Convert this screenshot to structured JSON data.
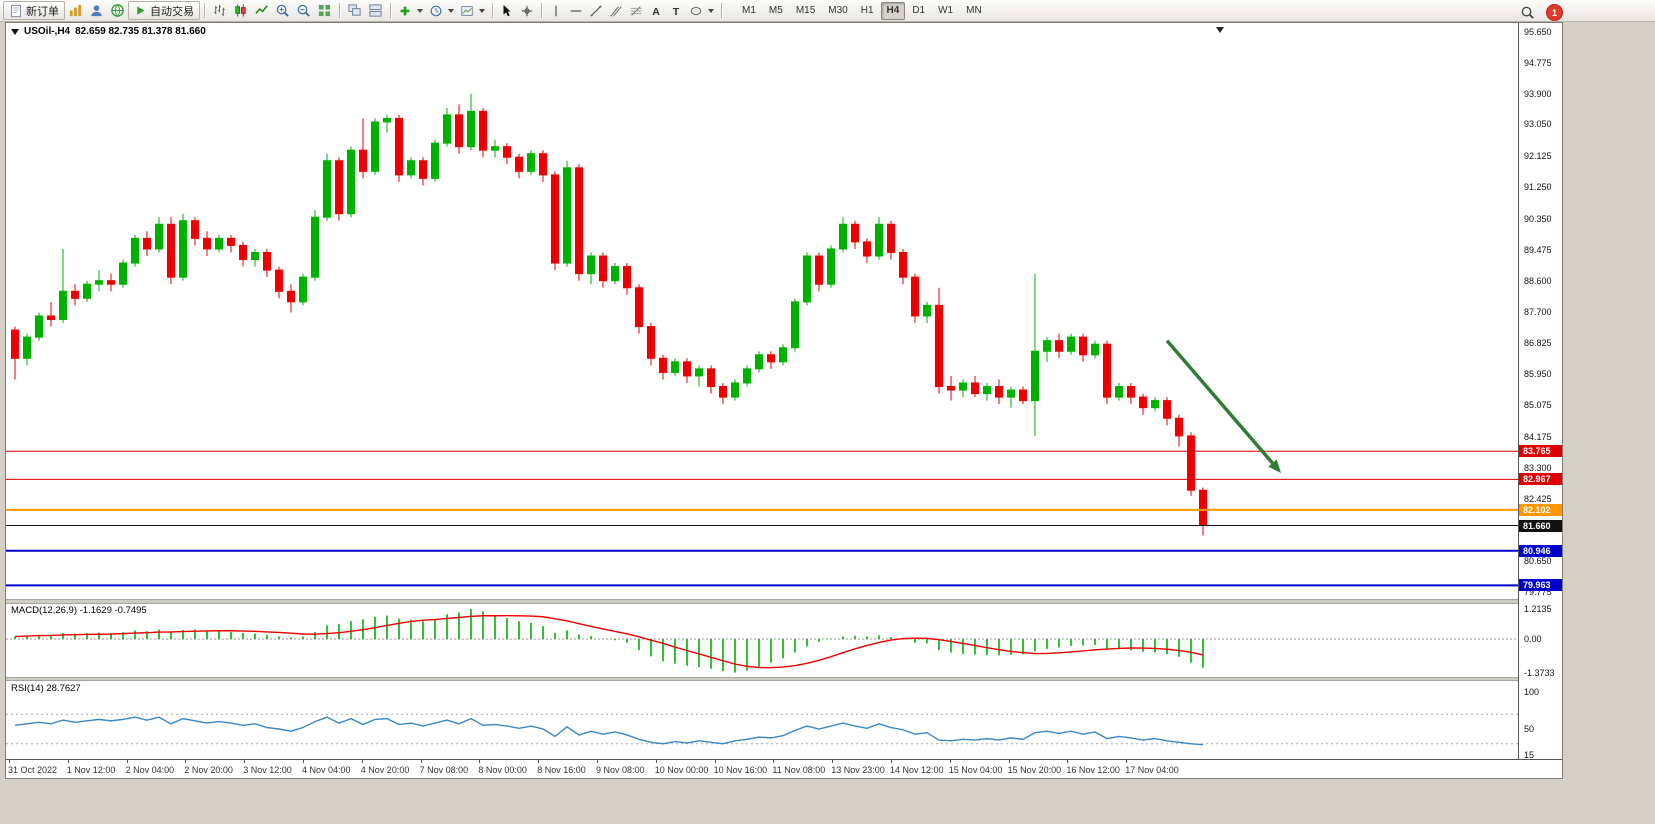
{
  "chart_window": {
    "symbol_period": "USOil-,H4",
    "ohlc": "82.659 82.735 81.378 81.660"
  },
  "toolbar": {
    "new_order_label": "新订单",
    "autotrading_label": "自动交易",
    "text_tool_a": "A",
    "text_tool_t": "T",
    "notification_count": "1",
    "timeframes": [
      {
        "label": "M1",
        "active": false
      },
      {
        "label": "M5",
        "active": false
      },
      {
        "label": "M15",
        "active": false
      },
      {
        "label": "M30",
        "active": false
      },
      {
        "label": "H1",
        "active": false
      },
      {
        "label": "H4",
        "active": true
      },
      {
        "label": "D1",
        "active": false
      },
      {
        "label": "W1",
        "active": false
      },
      {
        "label": "MN",
        "active": false
      }
    ]
  },
  "chart_data": {
    "type": "candlestick",
    "symbol": "USOil-",
    "timeframe": "H4",
    "ohlc_current": {
      "open": 82.659,
      "high": 82.735,
      "low": 81.378,
      "close": 81.66
    },
    "colors": {
      "bull": "#00b200",
      "bear": "#ee0000"
    },
    "price_axis": {
      "min": 79.775,
      "max": 95.65,
      "labels": [
        "95.650",
        "94.775",
        "93.900",
        "93.050",
        "92.125",
        "91.250",
        "90.350",
        "89.475",
        "88.600",
        "87.700",
        "86.825",
        "85.950",
        "85.075",
        "84.175",
        "83.300",
        "82.425",
        "81.550",
        "80.650",
        "79.775"
      ]
    },
    "candles": [
      [
        87.2,
        87.3,
        85.8,
        86.4
      ],
      [
        86.4,
        87.1,
        86.2,
        87.0
      ],
      [
        87.0,
        87.7,
        86.9,
        87.6
      ],
      [
        87.6,
        88.0,
        87.3,
        87.5
      ],
      [
        87.5,
        89.5,
        87.4,
        88.3
      ],
      [
        88.3,
        88.5,
        87.9,
        88.1
      ],
      [
        88.1,
        88.6,
        88.0,
        88.5
      ],
      [
        88.5,
        88.9,
        88.3,
        88.6
      ],
      [
        88.6,
        88.8,
        88.3,
        88.5
      ],
      [
        88.5,
        89.2,
        88.4,
        89.1
      ],
      [
        89.1,
        89.9,
        89.0,
        89.8
      ],
      [
        89.8,
        90.0,
        89.3,
        89.5
      ],
      [
        89.5,
        90.4,
        89.4,
        90.2
      ],
      [
        90.2,
        90.4,
        88.5,
        88.7
      ],
      [
        88.7,
        90.5,
        88.6,
        90.3
      ],
      [
        90.3,
        90.4,
        89.6,
        89.8
      ],
      [
        89.8,
        90.0,
        89.3,
        89.5
      ],
      [
        89.5,
        89.9,
        89.4,
        89.8
      ],
      [
        89.8,
        89.9,
        89.4,
        89.6
      ],
      [
        89.6,
        89.7,
        89.0,
        89.2
      ],
      [
        89.2,
        89.5,
        89.0,
        89.4
      ],
      [
        89.4,
        89.5,
        88.7,
        88.9
      ],
      [
        88.9,
        89.0,
        88.1,
        88.3
      ],
      [
        88.3,
        88.5,
        87.7,
        88.0
      ],
      [
        88.0,
        88.8,
        87.9,
        88.7
      ],
      [
        88.7,
        90.6,
        88.6,
        90.4
      ],
      [
        90.4,
        92.2,
        90.3,
        92.0
      ],
      [
        92.0,
        92.1,
        90.3,
        90.5
      ],
      [
        90.5,
        92.4,
        90.4,
        92.3
      ],
      [
        92.3,
        93.2,
        91.5,
        91.7
      ],
      [
        91.7,
        93.2,
        91.6,
        93.1
      ],
      [
        93.1,
        93.3,
        92.8,
        93.2
      ],
      [
        93.2,
        93.3,
        91.4,
        91.6
      ],
      [
        91.6,
        92.1,
        91.5,
        92.0
      ],
      [
        92.0,
        92.1,
        91.3,
        91.5
      ],
      [
        91.5,
        92.6,
        91.4,
        92.5
      ],
      [
        92.5,
        93.5,
        92.4,
        93.3
      ],
      [
        93.3,
        93.6,
        92.2,
        92.4
      ],
      [
        92.4,
        93.9,
        92.3,
        93.4
      ],
      [
        93.4,
        93.5,
        92.1,
        92.3
      ],
      [
        92.3,
        92.6,
        92.1,
        92.4
      ],
      [
        92.4,
        92.5,
        91.9,
        92.1
      ],
      [
        92.1,
        92.2,
        91.5,
        91.7
      ],
      [
        91.7,
        92.3,
        91.6,
        92.2
      ],
      [
        92.2,
        92.3,
        91.4,
        91.6
      ],
      [
        91.6,
        91.7,
        88.9,
        89.1
      ],
      [
        89.1,
        92.0,
        89.0,
        91.8
      ],
      [
        91.8,
        91.9,
        88.6,
        88.8
      ],
      [
        88.8,
        89.4,
        88.5,
        89.3
      ],
      [
        89.3,
        89.4,
        88.4,
        88.6
      ],
      [
        88.6,
        89.1,
        88.5,
        89.0
      ],
      [
        89.0,
        89.1,
        88.2,
        88.4
      ],
      [
        88.4,
        88.5,
        87.1,
        87.3
      ],
      [
        87.3,
        87.4,
        86.2,
        86.4
      ],
      [
        86.4,
        86.5,
        85.8,
        86.0
      ],
      [
        86.0,
        86.4,
        85.9,
        86.3
      ],
      [
        86.3,
        86.4,
        85.7,
        85.9
      ],
      [
        85.9,
        86.2,
        85.6,
        86.1
      ],
      [
        86.1,
        86.2,
        85.4,
        85.6
      ],
      [
        85.6,
        85.7,
        85.1,
        85.3
      ],
      [
        85.3,
        85.8,
        85.2,
        85.7
      ],
      [
        85.7,
        86.2,
        85.6,
        86.1
      ],
      [
        86.1,
        86.6,
        86.0,
        86.5
      ],
      [
        86.5,
        86.6,
        86.1,
        86.3
      ],
      [
        86.3,
        86.8,
        86.2,
        86.7
      ],
      [
        86.7,
        88.1,
        86.6,
        88.0
      ],
      [
        88.0,
        89.4,
        87.9,
        89.3
      ],
      [
        89.3,
        89.4,
        88.3,
        88.5
      ],
      [
        88.5,
        89.6,
        88.4,
        89.5
      ],
      [
        89.5,
        90.4,
        89.4,
        90.2
      ],
      [
        90.2,
        90.3,
        89.5,
        89.7
      ],
      [
        89.7,
        89.8,
        89.1,
        89.3
      ],
      [
        89.3,
        90.4,
        89.2,
        90.2
      ],
      [
        90.2,
        90.3,
        89.2,
        89.4
      ],
      [
        89.4,
        89.5,
        88.5,
        88.7
      ],
      [
        88.7,
        88.8,
        87.4,
        87.6
      ],
      [
        87.6,
        88.0,
        87.4,
        87.9
      ],
      [
        87.9,
        88.4,
        85.4,
        85.6
      ],
      [
        85.6,
        85.9,
        85.2,
        85.5
      ],
      [
        85.5,
        85.8,
        85.3,
        85.7
      ],
      [
        85.7,
        85.9,
        85.3,
        85.4
      ],
      [
        85.4,
        85.7,
        85.2,
        85.6
      ],
      [
        85.6,
        85.8,
        85.1,
        85.3
      ],
      [
        85.3,
        85.6,
        85.0,
        85.5
      ],
      [
        85.5,
        85.6,
        85.1,
        85.2
      ],
      [
        85.2,
        88.8,
        84.2,
        86.6
      ],
      [
        86.6,
        87.0,
        86.3,
        86.9
      ],
      [
        86.9,
        87.1,
        86.4,
        86.6
      ],
      [
        86.6,
        87.1,
        86.5,
        87.0
      ],
      [
        87.0,
        87.1,
        86.3,
        86.5
      ],
      [
        86.5,
        86.9,
        86.4,
        86.8
      ],
      [
        86.8,
        86.9,
        85.1,
        85.3
      ],
      [
        85.3,
        85.7,
        85.2,
        85.6
      ],
      [
        85.6,
        85.7,
        85.1,
        85.3
      ],
      [
        85.3,
        85.4,
        84.8,
        85.0
      ],
      [
        85.0,
        85.3,
        84.9,
        85.2
      ],
      [
        85.2,
        85.3,
        84.5,
        84.7
      ],
      [
        84.7,
        84.8,
        83.9,
        84.2
      ],
      [
        84.2,
        84.3,
        82.5,
        82.66
      ],
      [
        82.659,
        82.735,
        81.378,
        81.66
      ]
    ],
    "levels": [
      {
        "price": 83.765,
        "label": "83.765",
        "color": "#dd0000",
        "line_width": 1,
        "role": "resistance"
      },
      {
        "price": 82.967,
        "label": "82.967",
        "color": "#dd0000",
        "line_width": 1,
        "role": "resistance"
      },
      {
        "price": 82.102,
        "label": "82.102",
        "color": "#ff9800",
        "line_width": 2,
        "role": "support"
      },
      {
        "price": 81.66,
        "label": "81.660",
        "color": "#111111",
        "line_width": 1,
        "role": "current-price"
      },
      {
        "price": 80.946,
        "label": "80.946",
        "color": "#0000cc",
        "line_width": 2,
        "role": "support"
      },
      {
        "price": 79.963,
        "label": "79.963",
        "color": "#0000cc",
        "line_width": 2,
        "role": "support"
      }
    ],
    "arrow": {
      "from_bar": 96,
      "from_price": 86.9,
      "to_bar": 105.5,
      "to_price": 83.15,
      "color": "#2e7d32"
    },
    "time_labels": [
      "31 Oct 2022",
      "1 Nov 12:00",
      "2 Nov 04:00",
      "2 Nov 20:00",
      "3 Nov 12:00",
      "4 Nov 04:00",
      "4 Nov 20:00",
      "7 Nov 08:00",
      "8 Nov 00:00",
      "8 Nov 16:00",
      "9 Nov 08:00",
      "10 Nov 00:00",
      "10 Nov 16:00",
      "11 Nov 08:00",
      "13 Nov 23:00",
      "14 Nov 12:00",
      "15 Nov 04:00",
      "15 Nov 20:00",
      "16 Nov 12:00",
      "17 Nov 04:00"
    ],
    "macd": {
      "label": "MACD(12,26,9) -1.1629 -0.7495",
      "value": -1.1629,
      "signal_value": -0.7495,
      "axis_max": 1.2135,
      "axis": [
        {
          "v": 1.2135,
          "t": "1.2135"
        },
        {
          "v": 0,
          "t": "0.00"
        },
        {
          "v": -1.3733,
          "t": "-1.3733"
        }
      ],
      "colors": {
        "histogram": "#00b200",
        "signal": "#ee0000"
      },
      "histogram": [
        0.1,
        0.14,
        0.18,
        0.16,
        0.24,
        0.22,
        0.24,
        0.26,
        0.24,
        0.28,
        0.34,
        0.32,
        0.38,
        0.28,
        0.36,
        0.38,
        0.34,
        0.32,
        0.28,
        0.24,
        0.22,
        0.16,
        0.1,
        0.06,
        0.1,
        0.28,
        0.55,
        0.6,
        0.72,
        0.8,
        0.9,
        0.95,
        0.82,
        0.78,
        0.72,
        0.78,
        1.0,
        1.08,
        1.21,
        1.12,
        0.95,
        0.85,
        0.72,
        0.65,
        0.52,
        0.25,
        0.35,
        0.18,
        0.12,
        0.02,
        -0.05,
        -0.15,
        -0.45,
        -0.7,
        -0.9,
        -1.0,
        -1.08,
        -1.14,
        -1.2,
        -1.3,
        -1.36,
        -1.28,
        -1.12,
        -0.96,
        -0.78,
        -0.55,
        -0.3,
        -0.12,
        0.02,
        0.1,
        0.13,
        0.1,
        0.15,
        0.08,
        -0.02,
        -0.15,
        -0.18,
        -0.45,
        -0.55,
        -0.6,
        -0.63,
        -0.65,
        -0.66,
        -0.64,
        -0.62,
        -0.5,
        -0.4,
        -0.34,
        -0.28,
        -0.26,
        -0.24,
        -0.38,
        -0.42,
        -0.46,
        -0.52,
        -0.55,
        -0.62,
        -0.72,
        -0.95,
        -1.1629
      ]
    },
    "rsi": {
      "label": "RSI(14) 28.7627",
      "period": 14,
      "value": 28.7627,
      "color": "#3a87c8",
      "levels": [
        70,
        30
      ],
      "axis": [
        {
          "v": 100,
          "t": "100"
        },
        {
          "v": 50,
          "t": "50"
        },
        {
          "v": 15,
          "t": "15"
        }
      ],
      "values": [
        55,
        57,
        59,
        57,
        62,
        59,
        61,
        63,
        61,
        63,
        66,
        62,
        66,
        57,
        64,
        61,
        58,
        60,
        58,
        55,
        57,
        52,
        50,
        47,
        52,
        60,
        66,
        58,
        64,
        56,
        63,
        64,
        56,
        58,
        54,
        58,
        62,
        57,
        64,
        55,
        56,
        54,
        51,
        54,
        50,
        40,
        53,
        42,
        47,
        43,
        46,
        42,
        36,
        32,
        30,
        33,
        31,
        34,
        32,
        30,
        34,
        36,
        39,
        38,
        41,
        48,
        54,
        50,
        54,
        58,
        54,
        51,
        57,
        52,
        49,
        43,
        45,
        35,
        34,
        36,
        35,
        37,
        35,
        38,
        36,
        45,
        47,
        44,
        47,
        43,
        46,
        37,
        40,
        38,
        35,
        37,
        34,
        32,
        30,
        28.76
      ]
    }
  }
}
